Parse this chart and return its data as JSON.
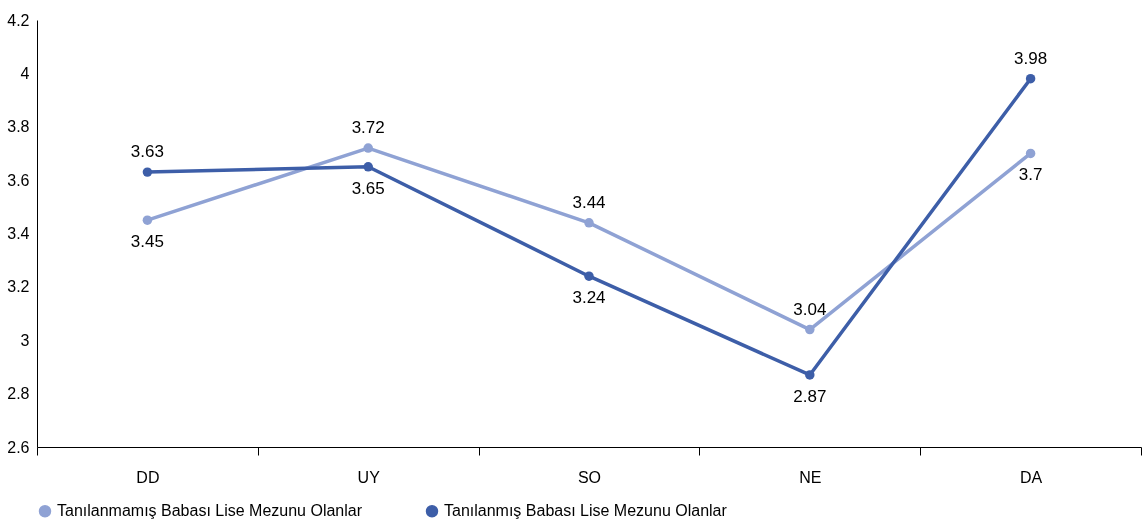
{
  "chart_data": {
    "type": "line",
    "categories": [
      "DD",
      "UY",
      "SO",
      "NE",
      "DA"
    ],
    "series": [
      {
        "name": "Tanılanmamış Babası Lise Mezunu Olanlar",
        "color": "#8fa2d4",
        "values": [
          3.45,
          3.72,
          3.44,
          3.04,
          3.7
        ]
      },
      {
        "name": "Tanılanmış Babası Lise Mezunu Olanlar",
        "color": "#3d5ea8",
        "values": [
          3.63,
          3.65,
          3.24,
          2.87,
          3.98
        ]
      }
    ],
    "ylim": [
      2.6,
      4.2
    ],
    "yticks": [
      2.6,
      2.8,
      3,
      3.2,
      3.4,
      3.6,
      3.8,
      4,
      4.2
    ],
    "grid": false,
    "legend": "bottom",
    "marker": "circle",
    "line_style": "solid",
    "data_labels": true
  }
}
